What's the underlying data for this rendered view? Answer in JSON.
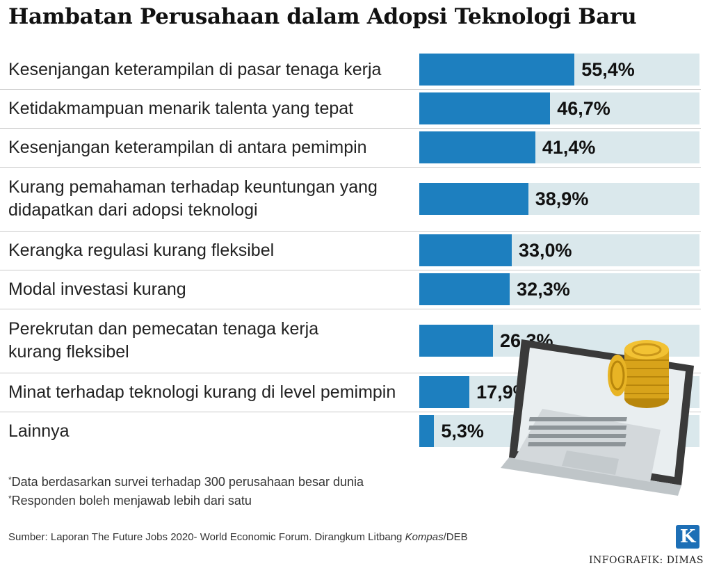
{
  "title": "Hambatan Perusahaan dalam Adopsi Teknologi Baru",
  "chart_data": {
    "type": "bar",
    "orientation": "horizontal",
    "title": "Hambatan Perusahaan dalam Adopsi Teknologi Baru",
    "xlim": [
      0,
      100
    ],
    "categories": [
      "Kesenjangan keterampilan di pasar tenaga kerja",
      "Ketidakmampuan menarik talenta yang tepat",
      "Kesenjangan keterampilan di antara pemimpin",
      "Kurang pemahaman terhadap keuntungan yang didapatkan dari adopsi teknologi",
      "Kerangka regulasi kurang fleksibel",
      "Modal investasi kurang",
      "Perekrutan dan pemecatan tenaga kerja kurang fleksibel",
      "Minat terhadap teknologi kurang di level pemimpin",
      "Lainnya"
    ],
    "label_lines": [
      [
        "Kesenjangan keterampilan di pasar tenaga kerja"
      ],
      [
        "Ketidakmampuan menarik talenta yang tepat"
      ],
      [
        "Kesenjangan keterampilan di antara pemimpin"
      ],
      [
        "Kurang pemahaman terhadap keuntungan yang",
        "didapatkan dari adopsi teknologi"
      ],
      [
        "Kerangka regulasi kurang fleksibel"
      ],
      [
        "Modal investasi kurang"
      ],
      [
        "Perekrutan dan pemecatan tenaga kerja",
        "kurang fleksibel"
      ],
      [
        "Minat terhadap teknologi kurang di level pemimpin"
      ],
      [
        "Lainnya"
      ]
    ],
    "values": [
      55.4,
      46.7,
      41.4,
      38.9,
      33.0,
      32.3,
      26.3,
      17.9,
      5.3
    ],
    "value_labels": [
      "55,4%",
      "46,7%",
      "41,4%",
      "38,9%",
      "33,0%",
      "32,3%",
      "26,3%",
      "17,9%",
      "5,3%"
    ],
    "colors": {
      "bar": "#1d7fbf",
      "track": "#dae8ec"
    }
  },
  "notes": [
    "Data berdasarkan survei terhadap 300 perusahaan besar dunia",
    "Responden boleh menjawab lebih dari satu"
  ],
  "note_marker": "*",
  "source": {
    "prefix": "Sumber: Laporan The Future Jobs 2020- World Economic Forum. Dirangkum Litbang ",
    "italic": "Kompas",
    "suffix": "/DEB"
  },
  "logo_letter": "K",
  "credit": "INFOGRAFIK: DIMAS",
  "illustration": "laptop-with-gold-coins-icon"
}
